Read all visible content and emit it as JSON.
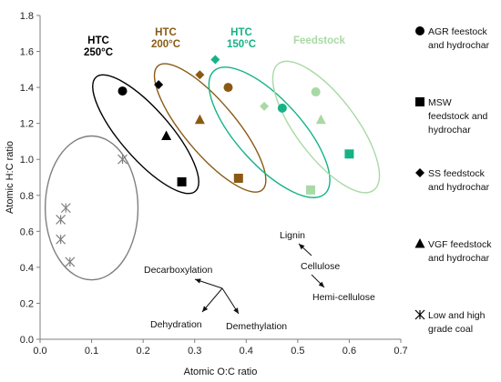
{
  "chart_data": {
    "type": "scatter",
    "xlabel": "Atomic O:C ratio",
    "ylabel": "Atomic H:C ratio",
    "xlim": [
      0,
      0.7
    ],
    "ylim": [
      0,
      1.8
    ],
    "x_ticks": [
      "0.0",
      "0.1",
      "0.2",
      "0.3",
      "0.4",
      "0.5",
      "0.6",
      "0.7"
    ],
    "y_ticks": [
      "0.0",
      "0.2",
      "0.4",
      "0.6",
      "0.8",
      "1.0",
      "1.2",
      "1.4",
      "1.6",
      "1.8"
    ],
    "grid": false,
    "legend_position": "right",
    "groups": [
      {
        "label_line1": "HTC",
        "label_line2": "250°C",
        "color": "#000000",
        "ellipse": {
          "cx": 0.205,
          "cy": 1.14,
          "rx": 0.048,
          "ry": 0.42,
          "angle_deg": -41
        }
      },
      {
        "label_line1": "HTC",
        "label_line2": "200°C",
        "color": "#8a5a14",
        "ellipse": {
          "cx": 0.33,
          "cy": 1.175,
          "rx": 0.05,
          "ry": 0.45,
          "angle_deg": -40
        }
      },
      {
        "label_line1": "HTC",
        "label_line2": "150°C",
        "color": "#14b386",
        "ellipse": {
          "cx": 0.445,
          "cy": 1.15,
          "rx": 0.063,
          "ry": 0.46,
          "angle_deg": -42
        }
      },
      {
        "label_line1": "Feedstock",
        "label_line2": "",
        "color": "#a9d9a5",
        "ellipse": {
          "cx": 0.555,
          "cy": 1.18,
          "rx": 0.058,
          "ry": 0.44,
          "angle_deg": -37
        }
      },
      {
        "label_line1": "",
        "label_line2": "",
        "color": "#7f7f7f",
        "ellipse": {
          "cx": 0.1,
          "cy": 0.73,
          "rx": 0.09,
          "ry": 0.4,
          "angle_deg": 0
        }
      }
    ],
    "series": [
      {
        "name": "AGR feestock and hydrochar",
        "marker": "circle",
        "points": [
          {
            "x": 0.16,
            "y": 1.38,
            "color": "#000000"
          },
          {
            "x": 0.365,
            "y": 1.4,
            "color": "#8a5a14"
          },
          {
            "x": 0.47,
            "y": 1.285,
            "color": "#14b386"
          },
          {
            "x": 0.535,
            "y": 1.375,
            "color": "#a9d9a5"
          }
        ]
      },
      {
        "name": "MSW feedstock and hydrochar",
        "marker": "square",
        "points": [
          {
            "x": 0.275,
            "y": 0.875,
            "color": "#000000"
          },
          {
            "x": 0.385,
            "y": 0.895,
            "color": "#8a5a14"
          },
          {
            "x": 0.6,
            "y": 1.03,
            "color": "#14b386"
          },
          {
            "x": 0.525,
            "y": 0.83,
            "color": "#a9d9a5"
          }
        ]
      },
      {
        "name": "SS feedstock and hydrochar",
        "marker": "diamond",
        "points": [
          {
            "x": 0.23,
            "y": 1.415,
            "color": "#000000"
          },
          {
            "x": 0.31,
            "y": 1.47,
            "color": "#8a5a14"
          },
          {
            "x": 0.34,
            "y": 1.555,
            "color": "#14b386"
          },
          {
            "x": 0.435,
            "y": 1.295,
            "color": "#a9d9a5"
          }
        ]
      },
      {
        "name": "VGF feedstock and hydrochar",
        "marker": "triangle",
        "points": [
          {
            "x": 0.245,
            "y": 1.13,
            "color": "#000000"
          },
          {
            "x": 0.31,
            "y": 1.22,
            "color": "#8a5a14"
          },
          {
            "x": 0.545,
            "y": 1.22,
            "color": "#a9d9a5"
          }
        ]
      },
      {
        "name": "Low and high grade coal",
        "marker": "asterisk",
        "points": [
          {
            "x": 0.16,
            "y": 1.0,
            "color": "#7f7f7f"
          },
          {
            "x": 0.05,
            "y": 0.73,
            "color": "#7f7f7f"
          },
          {
            "x": 0.04,
            "y": 0.665,
            "color": "#7f7f7f"
          },
          {
            "x": 0.04,
            "y": 0.555,
            "color": "#7f7f7f"
          },
          {
            "x": 0.058,
            "y": 0.43,
            "color": "#7f7f7f"
          }
        ]
      }
    ],
    "annotations": {
      "decarboxylation": "Decarboxylation",
      "dehydration": "Dehydration",
      "demethylation": "Demethylation",
      "lignin": "Lignin",
      "cellulose": "Cellulose",
      "hemicellulose": "Hemi-cellulose"
    }
  },
  "legend": [
    {
      "marker": "circle",
      "line1": "AGR feestock",
      "line2": "and hydrochar",
      "line3": ""
    },
    {
      "marker": "square",
      "line1": "MSW",
      "line2": "feedstock and",
      "line3": "hydrochar"
    },
    {
      "marker": "diamond",
      "line1": "SS feedstock",
      "line2": "and hydrochar",
      "line3": ""
    },
    {
      "marker": "triangle",
      "line1": "VGF feedstock",
      "line2": "and hydrochar",
      "line3": ""
    },
    {
      "marker": "asterisk",
      "line1": "Low and high",
      "line2": "grade coal",
      "line3": ""
    }
  ]
}
